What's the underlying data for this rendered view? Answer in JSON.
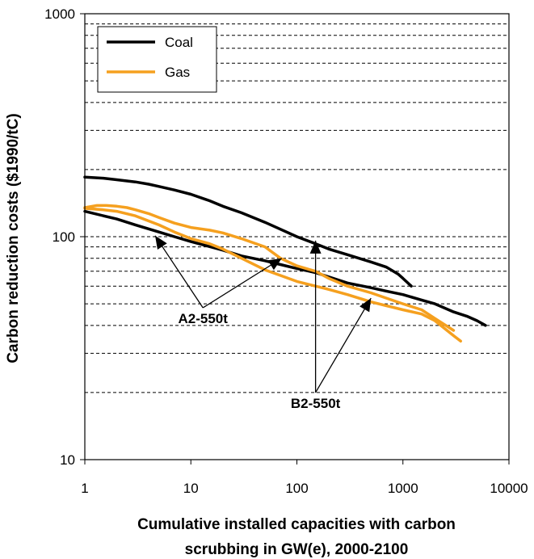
{
  "chart_data": {
    "type": "line",
    "xlabel_lines": [
      "Cumulative installed capacities with carbon",
      "scrubbing in GW(e), 2000-2100"
    ],
    "ylabel": "Carbon reduction costs ($1990/tC)",
    "x_scale": "log",
    "y_scale": "log",
    "xlim": [
      1,
      10000
    ],
    "ylim": [
      10,
      1000
    ],
    "x_ticks": [
      1,
      10,
      100,
      1000,
      10000
    ],
    "x_tick_labels": [
      "1",
      "10",
      "100",
      "1000",
      "10000"
    ],
    "y_ticks": [
      10,
      100,
      1000
    ],
    "y_tick_labels": [
      "10",
      "100",
      "1000"
    ],
    "y_gridlines": [
      20,
      30,
      40,
      50,
      60,
      70,
      80,
      90,
      100,
      200,
      300,
      400,
      500,
      600,
      700,
      800,
      900
    ],
    "grid": "horizontal dashed",
    "legend_position": "top-left",
    "series": [
      {
        "name": "Coal",
        "color": "#000000",
        "scenario": "B2-550t",
        "x": [
          1,
          1.5,
          2,
          3,
          4,
          5,
          7,
          10,
          15,
          20,
          30,
          50,
          70,
          100,
          150,
          200,
          300,
          500,
          700,
          900,
          1000,
          1200
        ],
        "y": [
          185,
          183,
          180,
          176,
          172,
          168,
          162,
          155,
          145,
          137,
          128,
          116,
          108,
          100,
          93,
          88,
          83,
          77,
          73,
          68,
          65,
          60
        ]
      },
      {
        "name": "Coal",
        "color": "#000000",
        "scenario": "A2-550t",
        "x": [
          1,
          2,
          3,
          5,
          7,
          10,
          20,
          30,
          50,
          70,
          100,
          150,
          200,
          300,
          500,
          700,
          1000,
          1500,
          2000,
          3000,
          4000,
          5000,
          6000
        ],
        "y": [
          130,
          120,
          113,
          105,
          100,
          95,
          87,
          82,
          78,
          75,
          72,
          69,
          66,
          62,
          59,
          57,
          55,
          52,
          50,
          46,
          44,
          42,
          40
        ]
      },
      {
        "name": "Gas",
        "color": "#f5a01f",
        "scenario": "B2-550t",
        "x": [
          1,
          1.3,
          1.6,
          2,
          2.5,
          3,
          4,
          5,
          7,
          10,
          15,
          20,
          30,
          50,
          70,
          100,
          150,
          200,
          300,
          500,
          700,
          1000,
          1500,
          2000,
          3000
        ],
        "y": [
          135,
          138,
          138,
          137,
          135,
          132,
          127,
          122,
          115,
          110,
          107,
          104,
          98,
          90,
          80,
          74,
          70,
          65,
          60,
          56,
          53,
          50,
          47,
          43,
          38
        ]
      },
      {
        "name": "Gas",
        "color": "#f5a01f",
        "scenario": "A2-550t",
        "x": [
          1,
          1.5,
          2,
          3,
          5,
          7,
          10,
          15,
          20,
          30,
          50,
          70,
          100,
          150,
          200,
          300,
          500,
          700,
          1000,
          1500,
          2000,
          3000,
          3500
        ],
        "y": [
          134,
          132,
          130,
          124,
          113,
          105,
          98,
          93,
          88,
          80,
          71,
          67,
          63,
          60,
          58,
          55,
          51,
          49,
          47,
          45,
          42,
          36,
          34
        ]
      }
    ],
    "legend": [
      {
        "label": "Coal",
        "color": "#000000"
      },
      {
        "label": "Gas",
        "color": "#f5a01f"
      }
    ],
    "annotations": [
      {
        "label": "A2-550t",
        "anchor": {
          "x": 13,
          "y": 48
        },
        "arrows": [
          {
            "x": 4.6,
            "y": 101
          },
          {
            "x": 72,
            "y": 80
          }
        ]
      },
      {
        "label": "B2-550t",
        "anchor": {
          "x": 150,
          "y": 20
        },
        "arrows": [
          {
            "x": 150,
            "y": 96
          },
          {
            "x": 500,
            "y": 53
          }
        ]
      }
    ]
  }
}
